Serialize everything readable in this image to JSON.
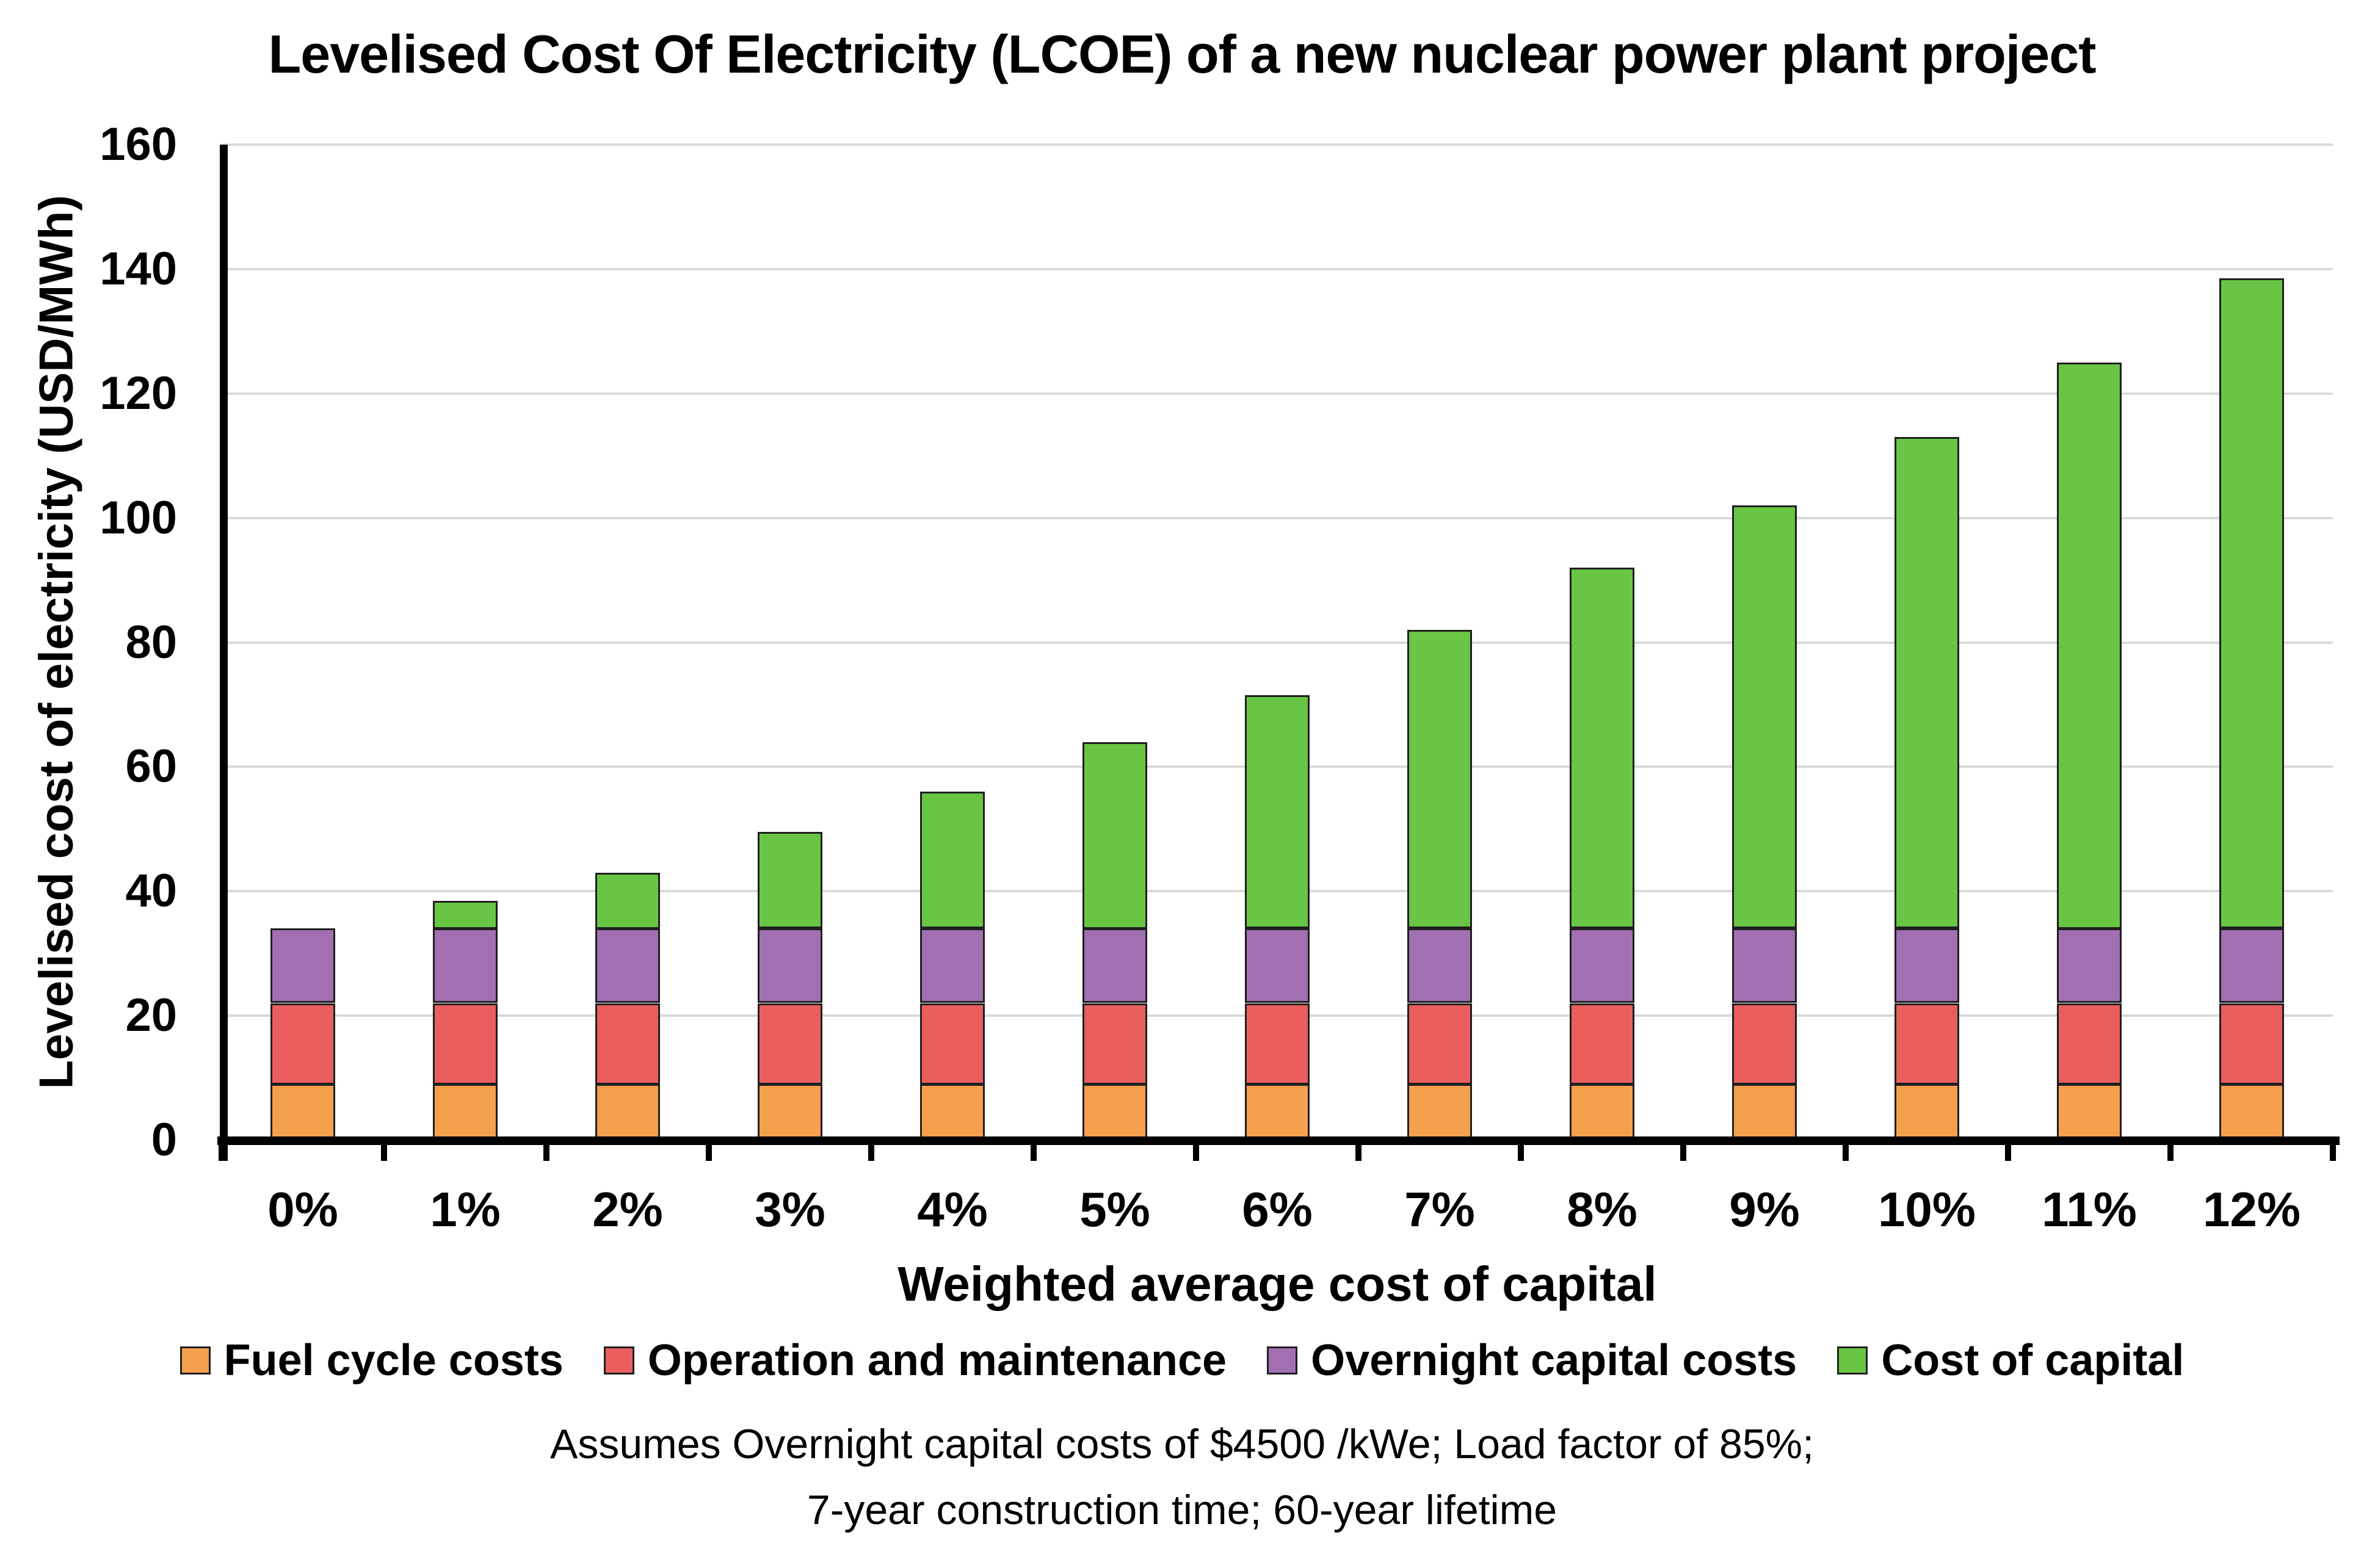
{
  "title": "Levelised Cost Of Electricity (LCOE) of a new nuclear power plant project",
  "chart_data": {
    "type": "bar",
    "stacked": true,
    "title": "Levelised Cost Of Electricity (LCOE) of a new nuclear power plant project",
    "categories": [
      "0%",
      "1%",
      "2%",
      "3%",
      "4%",
      "5%",
      "6%",
      "7%",
      "8%",
      "9%",
      "10%",
      "11%",
      "12%"
    ],
    "series": [
      {
        "name": "Fuel cycle costs",
        "color": "#F5A04C",
        "values": [
          9,
          9,
          9,
          9,
          9,
          9,
          9,
          9,
          9,
          9,
          9,
          9,
          9
        ]
      },
      {
        "name": "Operation and maintenance",
        "color": "#EA5E5E",
        "values": [
          13,
          13,
          13,
          13,
          13,
          13,
          13,
          13,
          13,
          13,
          13,
          13,
          13
        ]
      },
      {
        "name": "Overnight capital costs",
        "color": "#A16FB2",
        "values": [
          12,
          12,
          12,
          12,
          12,
          12,
          12,
          12,
          12,
          12,
          12,
          12,
          12
        ]
      },
      {
        "name": "Cost of capital",
        "color": "#69C544",
        "values": [
          0,
          4.5,
          9,
          15.5,
          22,
          30,
          37.5,
          48,
          58,
          68,
          79,
          91,
          104.5
        ]
      }
    ],
    "totals": [
      34,
      38.5,
      43,
      49.5,
      56,
      64,
      71.5,
      82,
      92,
      102,
      113,
      125,
      138.5
    ],
    "xlabel": "Weighted average cost of capital",
    "ylabel": "Levelised cost of electricity (USD/MWh)",
    "ylim": [
      0,
      160
    ],
    "yticks": [
      0,
      20,
      40,
      60,
      80,
      100,
      120,
      140,
      160
    ],
    "grid": "horizontal",
    "legend_position": "bottom"
  },
  "footnote": {
    "line1": "Assumes Overnight capital costs of $4500 /kWe; Load factor of 85%;",
    "line2": "7-year construction time; 60-year lifetime"
  },
  "colors": {
    "background": "#FFFFFF",
    "text": "#000000",
    "axis": "#000000",
    "gridline": "#D9D9D9",
    "bar_border": "#1F1F1F",
    "legend_swatch_border": "#1F1F1F"
  }
}
